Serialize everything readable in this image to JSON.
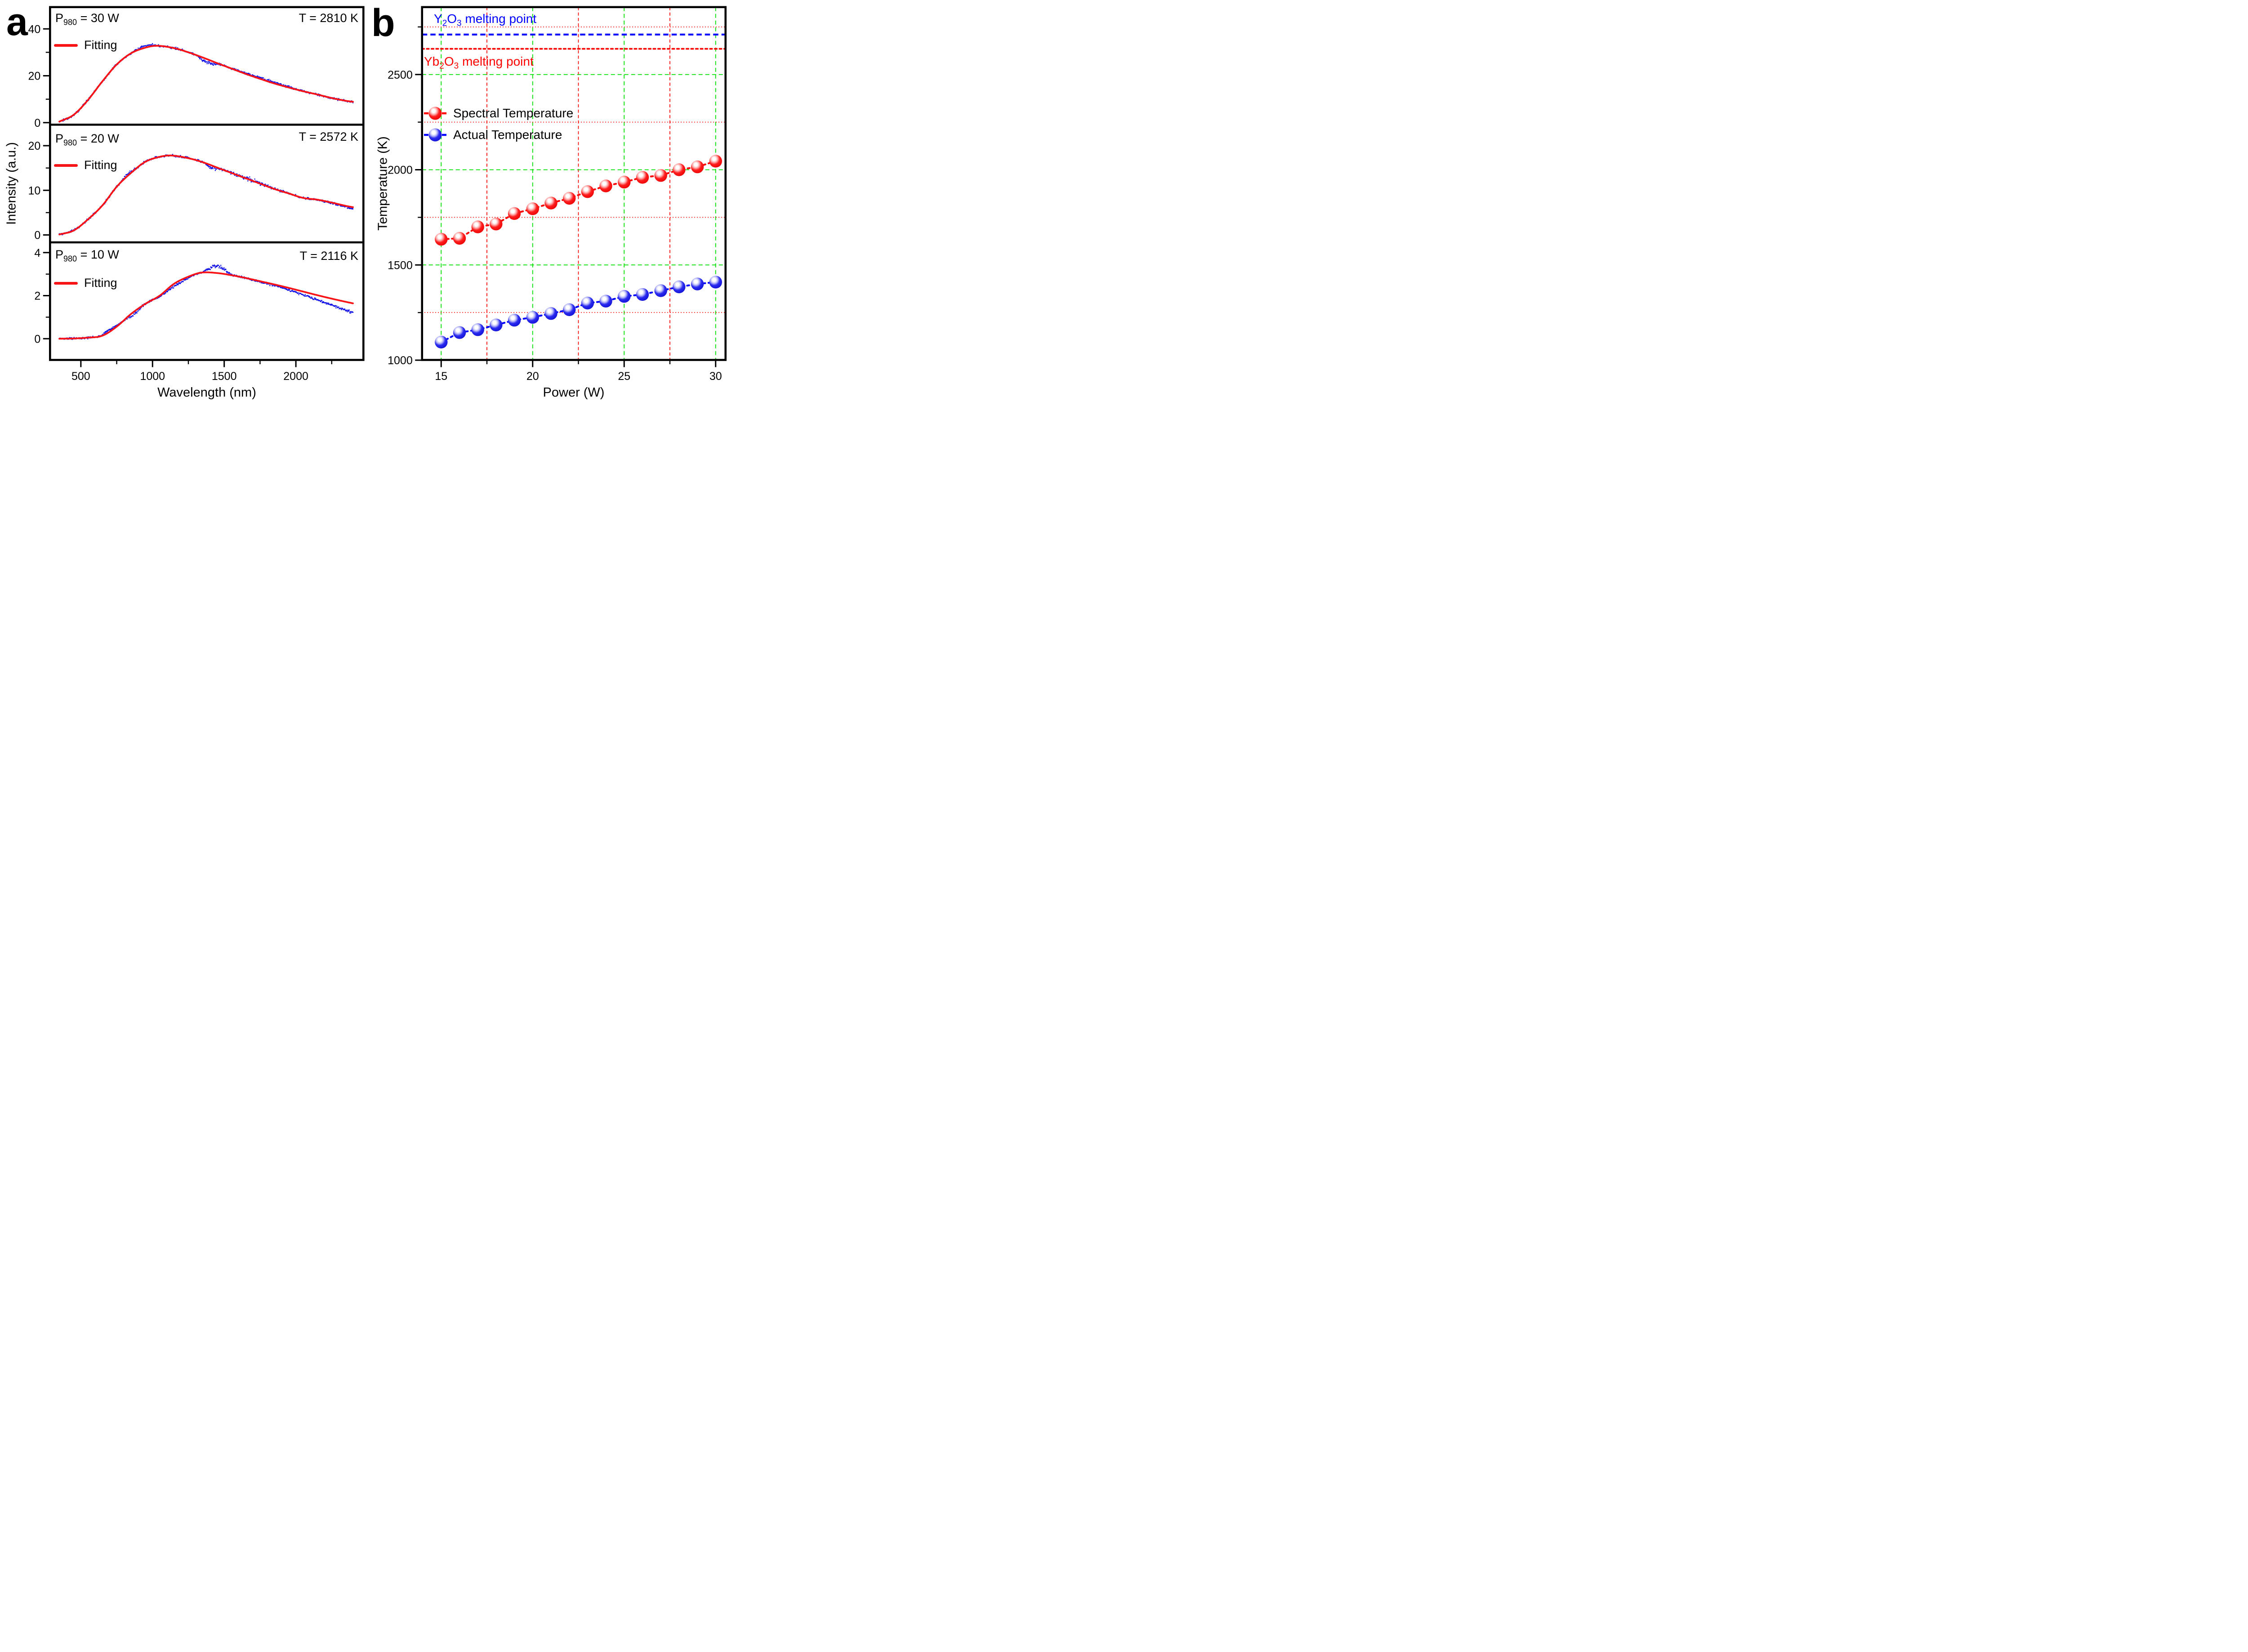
{
  "chart_data": [
    {
      "type": "line",
      "panel_label": "a",
      "xlabel": "Wavelength (nm)",
      "ylabel": "Intensity (a.u.)",
      "x_range": [
        285,
        2470
      ],
      "x_ticks": [
        500,
        1000,
        1500,
        2000
      ],
      "x_minor_ticks": [
        750,
        1250,
        1750,
        2250
      ],
      "fit_color": "#f81416",
      "data_color": "#1212e8",
      "subplots": [
        {
          "power": {
            "pre": "P",
            "sub": "980",
            "post": " = 30 W"
          },
          "temp": "T = 2810 K",
          "fit_label": "Fitting",
          "y_ticks": [
            0,
            20,
            40
          ],
          "y_minor_ticks": [
            10,
            30
          ],
          "y_range": [
            -1.0,
            49.2
          ],
          "data_range": [
            350,
            2400
          ],
          "noise": 0.55,
          "fit_points": [
            [
              350,
              0.45
            ],
            [
              450,
              3.35
            ],
            [
              550,
              9.7
            ],
            [
              650,
              17.6
            ],
            [
              750,
              24.8
            ],
            [
              850,
              29.6
            ],
            [
              950,
              32.0
            ],
            [
              1030,
              32.8
            ],
            [
              1150,
              31.8
            ],
            [
              1250,
              30.0
            ],
            [
              1350,
              27.8
            ],
            [
              1450,
              25.4
            ],
            [
              1550,
              23.1
            ],
            [
              1650,
              20.8
            ],
            [
              1750,
              18.7
            ],
            [
              1850,
              16.7
            ],
            [
              1950,
              15.0
            ],
            [
              2050,
              13.4
            ],
            [
              2150,
              12.0
            ],
            [
              2250,
              10.5
            ],
            [
              2350,
              9.3
            ],
            [
              2400,
              8.9
            ]
          ],
          "deviations": [
            {
              "from": 840,
              "to": 1060,
              "offset": 0.7,
              "spread": 1.25,
              "shape": "bump"
            },
            {
              "from": 1290,
              "to": 1480,
              "offset": -1.5,
              "spread": 1.9,
              "shape": "bump"
            },
            {
              "from": 1480,
              "to": 2150,
              "offset": 0.4,
              "spread": 1.1,
              "shape": "bump"
            },
            {
              "from": 2250,
              "to": 2400,
              "offset": -0.2,
              "spread": 1.0,
              "shape": "ramp"
            }
          ]
        },
        {
          "power": {
            "pre": "P",
            "sub": "980",
            "post": " = 20 W"
          },
          "temp": "T = 2572 K",
          "fit_label": "Fitting",
          "y_ticks": [
            0,
            10,
            20
          ],
          "y_minor_ticks": [
            5,
            15
          ],
          "y_range": [
            -1.7,
            24.7
          ],
          "data_range": [
            350,
            2400
          ],
          "noise": 0.3,
          "fit_points": [
            [
              350,
              0.1
            ],
            [
              450,
              1.0
            ],
            [
              550,
              3.5
            ],
            [
              650,
              6.6
            ],
            [
              750,
              10.8
            ],
            [
              850,
              13.9
            ],
            [
              950,
              16.4
            ],
            [
              1050,
              17.5
            ],
            [
              1130,
              17.8
            ],
            [
              1250,
              17.2
            ],
            [
              1350,
              16.3
            ],
            [
              1450,
              15.1
            ],
            [
              1550,
              13.9
            ],
            [
              1650,
              12.7
            ],
            [
              1750,
              11.5
            ],
            [
              1850,
              10.3
            ],
            [
              1950,
              9.3
            ],
            [
              2050,
              8.3
            ],
            [
              2150,
              7.9
            ],
            [
              2250,
              7.25
            ],
            [
              2350,
              6.5
            ],
            [
              2400,
              6.2
            ]
          ],
          "deviations": [
            {
              "from": 760,
              "to": 900,
              "offset": 0.3,
              "spread": 1.3,
              "shape": "bump"
            },
            {
              "from": 1340,
              "to": 1480,
              "offset": -0.55,
              "spread": 1.7,
              "shape": "bump"
            },
            {
              "from": 1480,
              "to": 1950,
              "offset": 0.05,
              "spread": 2.1,
              "shape": "bump"
            },
            {
              "from": 2080,
              "to": 2400,
              "offset": -0.35,
              "spread": 1.0,
              "shape": "ramp"
            }
          ]
        },
        {
          "power": {
            "pre": "P",
            "sub": "980",
            "post": " = 10 W"
          },
          "temp": "T = 2116 K",
          "fit_label": "Fitting",
          "y_ticks": [
            0,
            2,
            4
          ],
          "y_minor_ticks": [
            1,
            3
          ],
          "y_range": [
            -0.99,
            4.47
          ],
          "data_range": [
            350,
            2400
          ],
          "noise": 0.055,
          "fit_points": [
            [
              350,
              0.0
            ],
            [
              450,
              0.01
            ],
            [
              550,
              0.05
            ],
            [
              650,
              0.14
            ],
            [
              750,
              0.56
            ],
            [
              850,
              1.15
            ],
            [
              950,
              1.62
            ],
            [
              1050,
              2.0
            ],
            [
              1150,
              2.55
            ],
            [
              1250,
              2.88
            ],
            [
              1340,
              3.07
            ],
            [
              1450,
              3.05
            ],
            [
              1550,
              2.95
            ],
            [
              1650,
              2.82
            ],
            [
              1750,
              2.67
            ],
            [
              1850,
              2.52
            ],
            [
              1950,
              2.36
            ],
            [
              2050,
              2.19
            ],
            [
              2150,
              2.02
            ],
            [
              2250,
              1.86
            ],
            [
              2350,
              1.71
            ],
            [
              2400,
              1.64
            ]
          ],
          "deviations": [
            {
              "from": 600,
              "to": 800,
              "offset": 0.1,
              "spread": 1.2,
              "shape": "bump"
            },
            {
              "from": 800,
              "to": 950,
              "offset": -0.12,
              "spread": 3.4,
              "shape": "bump"
            },
            {
              "from": 980,
              "to": 1330,
              "offset": -0.13,
              "spread": 1.1,
              "shape": "bump"
            },
            {
              "from": 1330,
              "to": 1570,
              "offset": 0.35,
              "spread": 2.3,
              "shape": "bump"
            },
            {
              "from": 1570,
              "to": 2400,
              "offset": -0.44,
              "spread": 1.2,
              "shape": "ramp"
            }
          ]
        }
      ]
    },
    {
      "type": "scatter",
      "panel_label": "b",
      "xlabel": "Power (W)",
      "ylabel": "Temperature (K)",
      "x_range": [
        13.95,
        30.55
      ],
      "y_range": [
        1000,
        2855
      ],
      "x_ticks": [
        15,
        20,
        25,
        30
      ],
      "x_minor_ticks": [
        17.5,
        22.5,
        27.5
      ],
      "y_ticks": [
        2500,
        2000,
        1500,
        1000
      ],
      "y_minor_ticks": [
        2750,
        2250,
        1750,
        1250
      ],
      "grid": {
        "major_color": "#00e100",
        "minor_color": "#ff0000"
      },
      "melting_lines": [
        {
          "label": {
            "m1": "Y",
            "s1": "2",
            "m2": "O",
            "s2": "3",
            "rest": " melting point"
          },
          "value": 2710,
          "color": "#0000ff",
          "style": "dashed"
        },
        {
          "label": {
            "m1": "Yb",
            "s1": "2",
            "m2": "O",
            "s2": "3",
            "rest": " melting point"
          },
          "value": 2635,
          "color": "#ff0000",
          "style": "dotted"
        }
      ],
      "legend": [
        {
          "label": "Spectral Temperature",
          "color": "#ff0000"
        },
        {
          "label": "Actual Temperature",
          "color": "#0000ff"
        }
      ],
      "series": [
        {
          "name": "Spectral Temperature",
          "color": "#ff0000",
          "ball": "red",
          "x": [
            15,
            16,
            17,
            18,
            19,
            20,
            21,
            22,
            23,
            24,
            25,
            26,
            27,
            28,
            29,
            30
          ],
          "y": [
            1635,
            1640,
            1700,
            1715,
            1770,
            1795,
            1825,
            1850,
            1885,
            1915,
            1935,
            1960,
            1970,
            2000,
            2015,
            2045
          ]
        },
        {
          "name": "Actual Temperature",
          "color": "#0000ff",
          "ball": "blue",
          "x": [
            15,
            16,
            17,
            18,
            19,
            20,
            21,
            22,
            23,
            24,
            25,
            26,
            27,
            28,
            29,
            30
          ],
          "y": [
            1095,
            1145,
            1160,
            1185,
            1210,
            1225,
            1245,
            1265,
            1300,
            1310,
            1335,
            1345,
            1365,
            1385,
            1400,
            1410
          ]
        }
      ]
    }
  ]
}
